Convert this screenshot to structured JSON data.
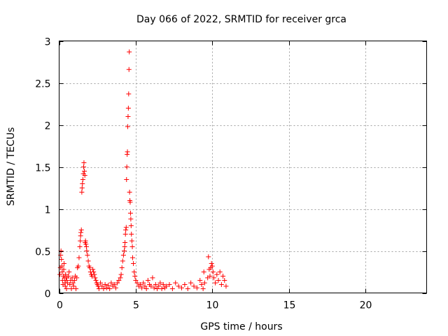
{
  "chart_data": {
    "type": "scatter",
    "title": "Day 066 of 2022, SRMTID for receiver grca",
    "xlabel": "GPS time / hours",
    "ylabel": "SRMTID / TECUs",
    "xlim": [
      0,
      24
    ],
    "ylim": [
      0,
      3
    ],
    "xticks": [
      0,
      5,
      10,
      15,
      20
    ],
    "yticks": [
      0,
      0.5,
      1,
      1.5,
      2,
      2.5,
      3
    ],
    "ytick_labels": [
      "0",
      "0.5",
      "1",
      "1.5",
      "2",
      "2.5",
      "3"
    ],
    "grid": true,
    "marker": "+",
    "color": "#ff0000",
    "series": [
      {
        "name": "SRMTID",
        "points": [
          [
            0.05,
            0.22
          ],
          [
            0.08,
            0.3
          ],
          [
            0.1,
            0.45
          ],
          [
            0.12,
            0.5
          ],
          [
            0.15,
            0.4
          ],
          [
            0.18,
            0.32
          ],
          [
            0.2,
            0.25
          ],
          [
            0.22,
            0.15
          ],
          [
            0.25,
            0.1
          ],
          [
            0.28,
            0.2
          ],
          [
            0.3,
            0.28
          ],
          [
            0.32,
            0.35
          ],
          [
            0.35,
            0.18
          ],
          [
            0.38,
            0.12
          ],
          [
            0.4,
            0.08
          ],
          [
            0.42,
            0.22
          ],
          [
            0.45,
            0.15
          ],
          [
            0.48,
            0.05
          ],
          [
            0.5,
            0.18
          ],
          [
            0.55,
            0.12
          ],
          [
            0.6,
            0.2
          ],
          [
            0.65,
            0.25
          ],
          [
            0.7,
            0.1
          ],
          [
            0.75,
            0.15
          ],
          [
            0.8,
            0.05
          ],
          [
            0.85,
            0.18
          ],
          [
            0.9,
            0.12
          ],
          [
            0.95,
            0.08
          ],
          [
            1.0,
            0.15
          ],
          [
            1.05,
            0.2
          ],
          [
            1.1,
            0.05
          ],
          [
            1.15,
            0.18
          ],
          [
            1.2,
            0.3
          ],
          [
            1.25,
            0.32
          ],
          [
            1.3,
            0.42
          ],
          [
            1.35,
            0.55
          ],
          [
            1.38,
            0.62
          ],
          [
            1.4,
            0.68
          ],
          [
            1.42,
            0.72
          ],
          [
            1.45,
            0.75
          ],
          [
            1.48,
            1.2
          ],
          [
            1.5,
            1.25
          ],
          [
            1.52,
            1.3
          ],
          [
            1.55,
            1.35
          ],
          [
            1.58,
            1.42
          ],
          [
            1.6,
            1.5
          ],
          [
            1.62,
            1.55
          ],
          [
            1.65,
            1.45
          ],
          [
            1.68,
            1.4
          ],
          [
            1.7,
            0.6
          ],
          [
            1.72,
            0.62
          ],
          [
            1.75,
            0.58
          ],
          [
            1.78,
            0.55
          ],
          [
            1.8,
            0.5
          ],
          [
            1.85,
            0.45
          ],
          [
            1.9,
            0.38
          ],
          [
            1.95,
            0.32
          ],
          [
            2.0,
            0.3
          ],
          [
            2.05,
            0.25
          ],
          [
            2.1,
            0.22
          ],
          [
            2.15,
            0.2
          ],
          [
            2.2,
            0.28
          ],
          [
            2.25,
            0.25
          ],
          [
            2.3,
            0.22
          ],
          [
            2.35,
            0.18
          ],
          [
            2.4,
            0.15
          ],
          [
            2.45,
            0.12
          ],
          [
            2.5,
            0.1
          ],
          [
            2.55,
            0.08
          ],
          [
            2.6,
            0.05
          ],
          [
            2.7,
            0.12
          ],
          [
            2.8,
            0.08
          ],
          [
            2.9,
            0.05
          ],
          [
            3.0,
            0.1
          ],
          [
            3.1,
            0.06
          ],
          [
            3.2,
            0.09
          ],
          [
            3.3,
            0.05
          ],
          [
            3.4,
            0.12
          ],
          [
            3.5,
            0.08
          ],
          [
            3.6,
            0.1
          ],
          [
            3.7,
            0.06
          ],
          [
            3.8,
            0.12
          ],
          [
            3.9,
            0.15
          ],
          [
            4.0,
            0.18
          ],
          [
            4.05,
            0.22
          ],
          [
            4.1,
            0.3
          ],
          [
            4.15,
            0.38
          ],
          [
            4.2,
            0.45
          ],
          [
            4.25,
            0.5
          ],
          [
            4.28,
            0.55
          ],
          [
            4.3,
            0.6
          ],
          [
            4.33,
            0.7
          ],
          [
            4.35,
            0.75
          ],
          [
            4.38,
            0.78
          ],
          [
            4.4,
            1.35
          ],
          [
            4.42,
            1.5
          ],
          [
            4.44,
            1.65
          ],
          [
            4.46,
            1.68
          ],
          [
            4.48,
            1.98
          ],
          [
            4.5,
            2.1
          ],
          [
            4.52,
            2.2
          ],
          [
            4.54,
            2.37
          ],
          [
            4.56,
            2.66
          ],
          [
            4.58,
            2.87
          ],
          [
            4.6,
            1.2
          ],
          [
            4.62,
            1.1
          ],
          [
            4.64,
            1.08
          ],
          [
            4.66,
            0.95
          ],
          [
            4.68,
            0.88
          ],
          [
            4.7,
            0.8
          ],
          [
            4.72,
            0.7
          ],
          [
            4.75,
            0.62
          ],
          [
            4.78,
            0.55
          ],
          [
            4.8,
            0.42
          ],
          [
            4.85,
            0.35
          ],
          [
            4.9,
            0.25
          ],
          [
            4.95,
            0.2
          ],
          [
            5.0,
            0.15
          ],
          [
            5.1,
            0.12
          ],
          [
            5.2,
            0.08
          ],
          [
            5.3,
            0.1
          ],
          [
            5.4,
            0.06
          ],
          [
            5.5,
            0.12
          ],
          [
            5.6,
            0.08
          ],
          [
            5.7,
            0.05
          ],
          [
            5.8,
            0.15
          ],
          [
            5.9,
            0.1
          ],
          [
            6.0,
            0.08
          ],
          [
            6.1,
            0.18
          ],
          [
            6.2,
            0.06
          ],
          [
            6.3,
            0.1
          ],
          [
            6.4,
            0.05
          ],
          [
            6.5,
            0.08
          ],
          [
            6.6,
            0.12
          ],
          [
            6.7,
            0.05
          ],
          [
            6.8,
            0.1
          ],
          [
            6.9,
            0.06
          ],
          [
            7.0,
            0.08
          ],
          [
            7.2,
            0.1
          ],
          [
            7.4,
            0.05
          ],
          [
            7.6,
            0.12
          ],
          [
            7.8,
            0.08
          ],
          [
            8.0,
            0.06
          ],
          [
            8.2,
            0.1
          ],
          [
            8.4,
            0.05
          ],
          [
            8.6,
            0.12
          ],
          [
            8.8,
            0.08
          ],
          [
            9.0,
            0.06
          ],
          [
            9.2,
            0.15
          ],
          [
            9.3,
            0.1
          ],
          [
            9.4,
            0.05
          ],
          [
            9.45,
            0.25
          ],
          [
            9.5,
            0.12
          ],
          [
            9.7,
            0.18
          ],
          [
            9.75,
            0.43
          ],
          [
            9.8,
            0.28
          ],
          [
            9.85,
            0.2
          ],
          [
            9.9,
            0.3
          ],
          [
            9.95,
            0.35
          ],
          [
            10.0,
            0.32
          ],
          [
            10.05,
            0.25
          ],
          [
            10.1,
            0.18
          ],
          [
            10.2,
            0.12
          ],
          [
            10.3,
            0.22
          ],
          [
            10.4,
            0.15
          ],
          [
            10.5,
            0.25
          ],
          [
            10.6,
            0.1
          ],
          [
            10.7,
            0.2
          ],
          [
            10.8,
            0.15
          ],
          [
            10.9,
            0.08
          ]
        ]
      }
    ]
  }
}
